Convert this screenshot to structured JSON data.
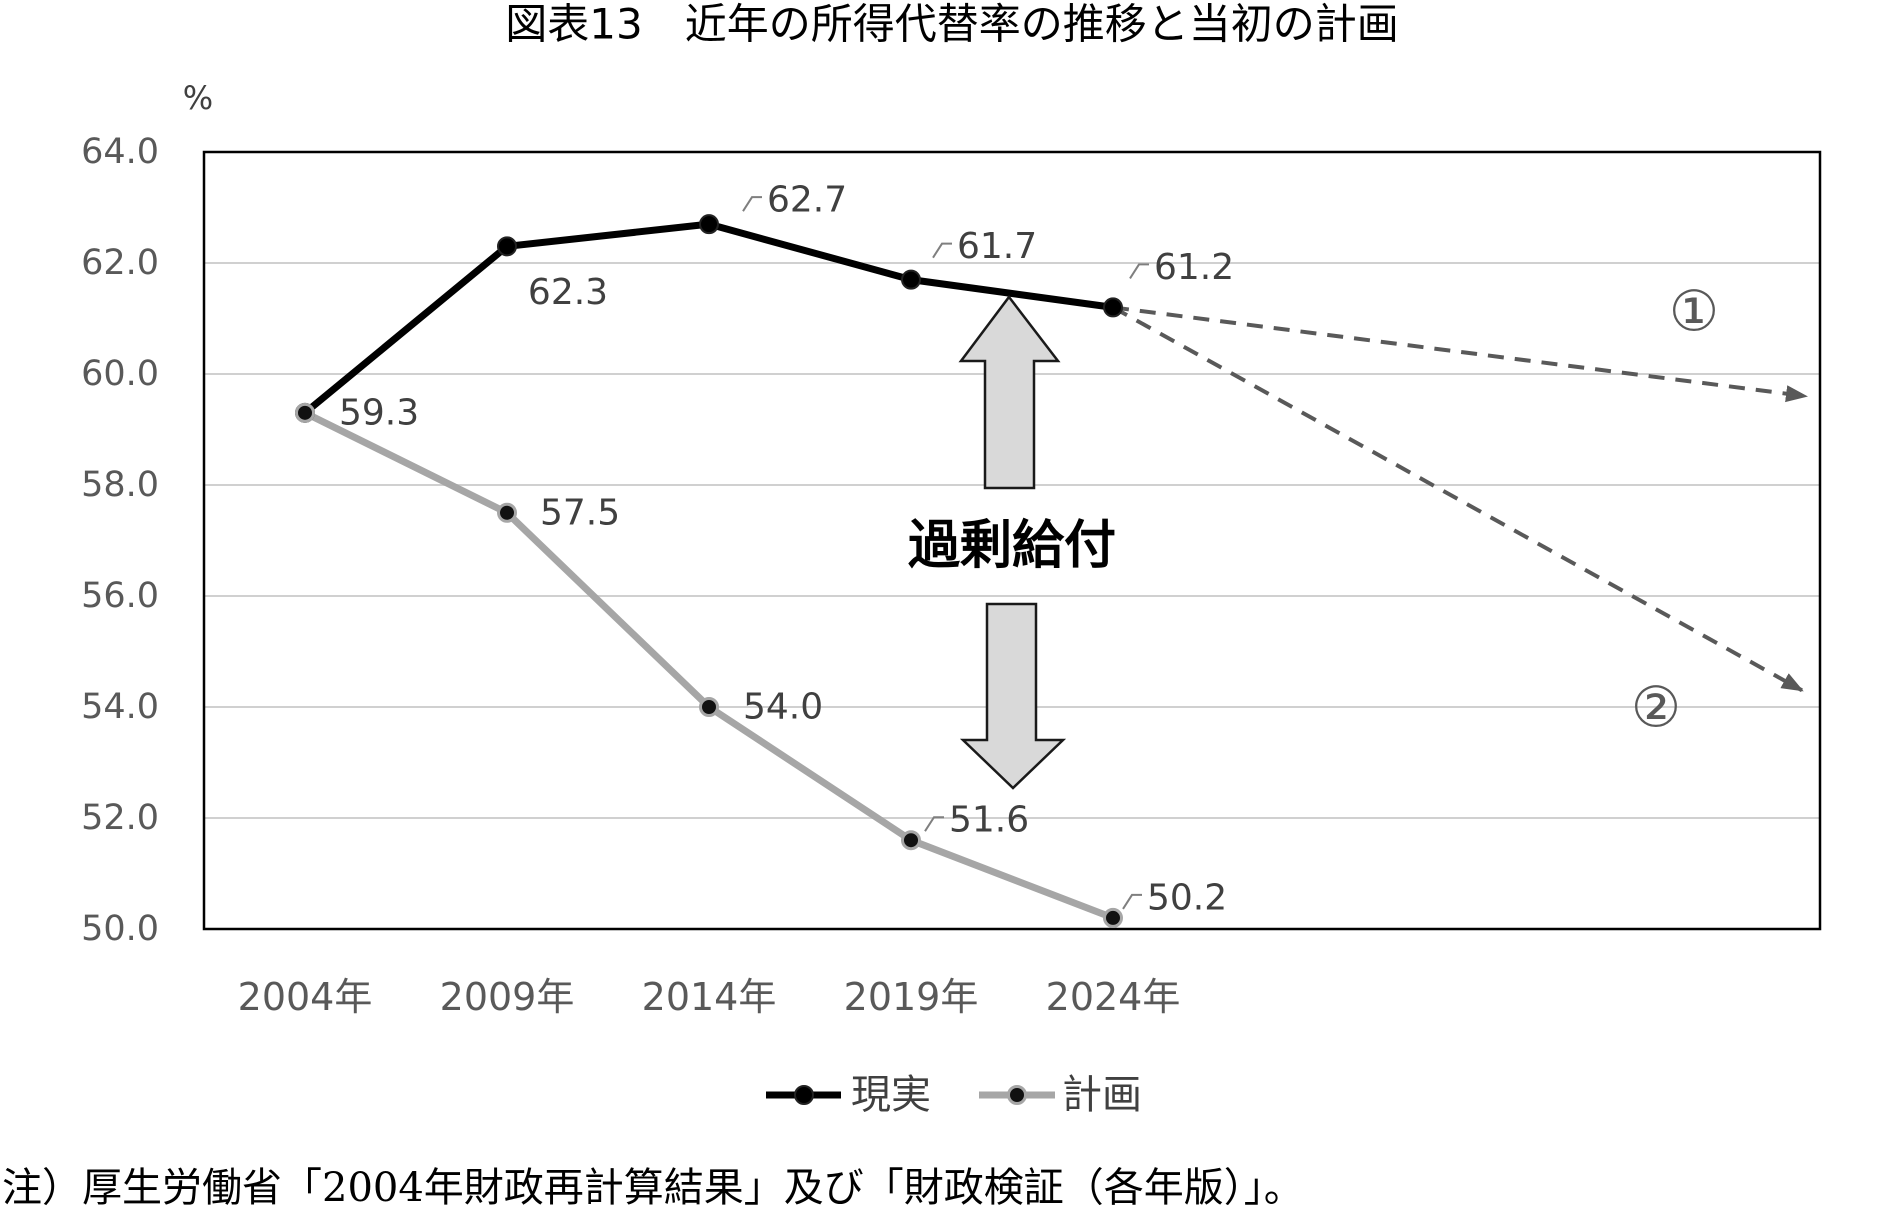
{
  "chart_data": {
    "type": "line",
    "title": "図表13　近年の所得代替率の推移と当初の計画",
    "ylabel": "%",
    "xlabel": "",
    "categories": [
      "2004年",
      "2009年",
      "2014年",
      "2019年",
      "2024年"
    ],
    "ylim": [
      50,
      64
    ],
    "yticks": [
      "64.0",
      "62.0",
      "60.0",
      "58.0",
      "56.0",
      "54.0",
      "52.0",
      "50.0"
    ],
    "grid": true,
    "legend_position": "bottom",
    "series": [
      {
        "name": "現実",
        "values": [
          59.3,
          62.3,
          62.7,
          61.7,
          61.2
        ],
        "color": "#000000"
      },
      {
        "name": "計画",
        "values": [
          59.3,
          57.5,
          54.0,
          51.6,
          50.2
        ],
        "color": "#a6a6a6"
      }
    ],
    "projections": [
      {
        "label": "①",
        "end_value": 59.6,
        "color": "#595959"
      },
      {
        "label": "②",
        "end_value": 54.3,
        "color": "#595959"
      }
    ],
    "annotation": {
      "text": "過剰給付",
      "arrow_fill": "#d9d9d9"
    }
  },
  "note": "注）厚生労働省「2004年財政再計算結果」及び「財政検証（各年版）」。"
}
